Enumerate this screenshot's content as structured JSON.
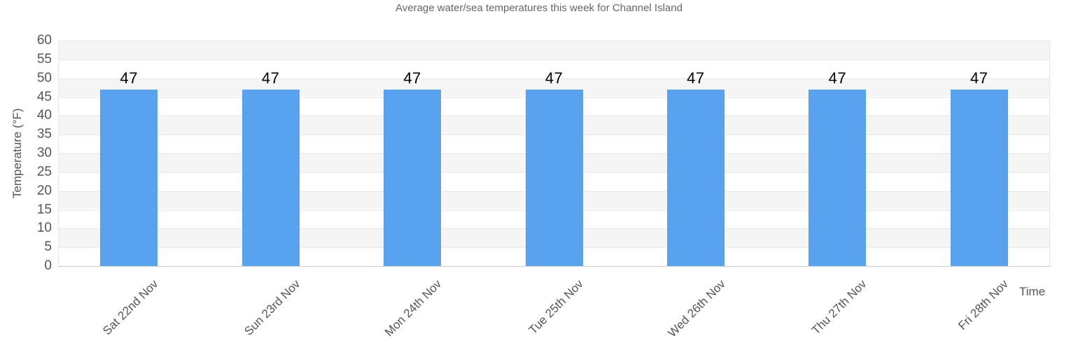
{
  "chart_data": {
    "type": "bar",
    "title": "Average water/sea temperatures this week for Channel Island",
    "categories": [
      "Sat 22nd Nov",
      "Sun 23rd Nov",
      "Mon 24th Nov",
      "Tue 25th Nov",
      "Wed 26th Nov",
      "Thu 27th Nov",
      "Fri 28th Nov"
    ],
    "values": [
      47,
      47,
      47,
      47,
      47,
      47,
      47
    ],
    "data_labels": [
      "47",
      "47",
      "47",
      "47",
      "47",
      "47",
      "47"
    ],
    "xlabel": "Time",
    "ylabel": "Temperature (°F)",
    "ylim": [
      0,
      60
    ],
    "ytick_step": 5,
    "yticks": [
      0,
      5,
      10,
      15,
      20,
      25,
      30,
      35,
      40,
      45,
      50,
      55,
      60
    ],
    "grid": true,
    "legend_position": "none",
    "colors": {
      "bar": "#58a2ef",
      "band": "#f5f5f5",
      "gridline": "#e7e7e7",
      "axis_line": "#cccccc",
      "plot_border": "#e6e6e6",
      "title_text": "#666666",
      "axis_text": "#555555",
      "data_label_text": "#000000"
    }
  }
}
